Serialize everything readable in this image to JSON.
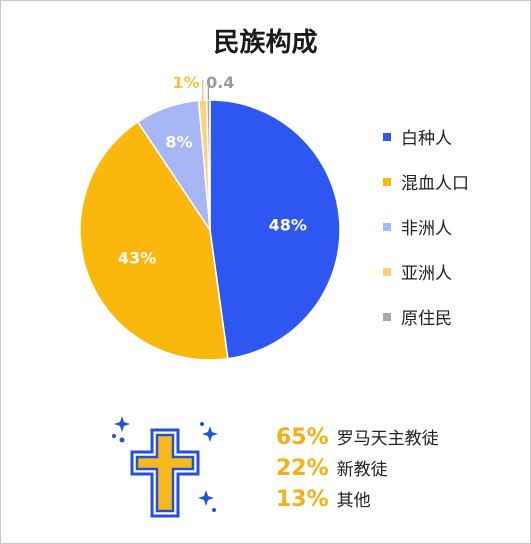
{
  "colors": {
    "white": "#2d57f0",
    "mixed": "#fbb70c",
    "african": "#a7b6f5",
    "asian": "#fdd37a",
    "indigenous": "#a8a8a8",
    "accent_orange": "#f4b014",
    "cross_fill": "#f8b91e",
    "cross_outline": "#2551d8"
  },
  "chart_data": {
    "type": "pie",
    "title": "民族构成",
    "slices": [
      {
        "label": "白种人",
        "value": 48,
        "display": "48%"
      },
      {
        "label": "混血人口",
        "value": 43,
        "display": "43%"
      },
      {
        "label": "非洲人",
        "value": 8,
        "display": "8%"
      },
      {
        "label": "亚洲人",
        "value": 1,
        "display": "1%"
      },
      {
        "label": "原住民",
        "value": 0.4,
        "display": "0.4"
      }
    ],
    "legend_position": "right"
  },
  "religion": {
    "icon": "cross-icon",
    "items": [
      {
        "pct": "65%",
        "label": "罗马天主教徒"
      },
      {
        "pct": "22%",
        "label": "新教徒"
      },
      {
        "pct": "13%",
        "label": "其他"
      }
    ]
  }
}
